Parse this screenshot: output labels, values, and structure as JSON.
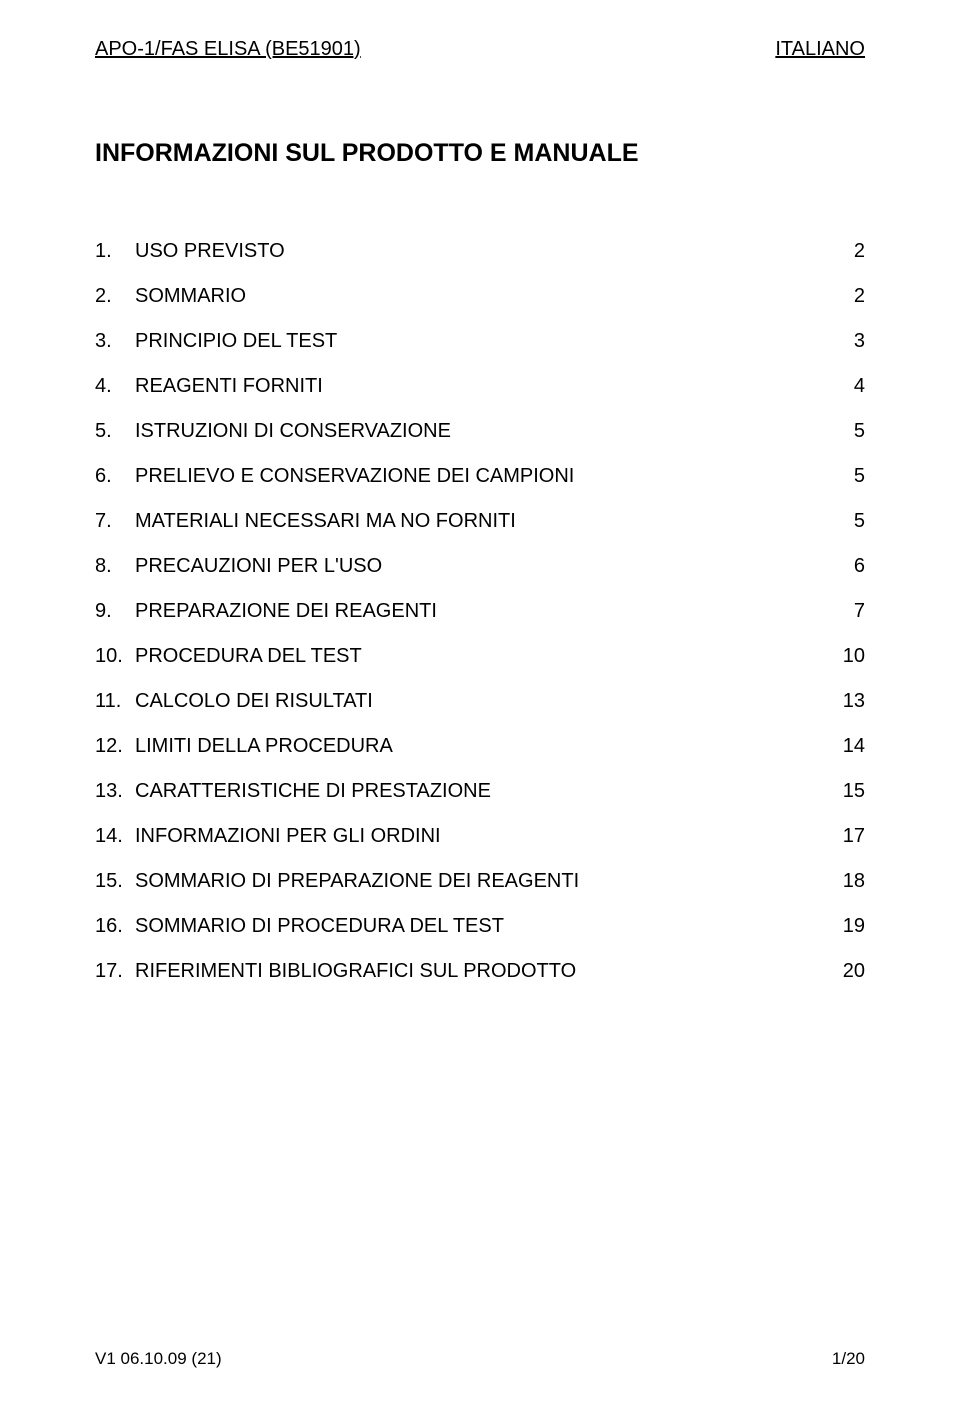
{
  "header": {
    "left": "APO-1/FAS ELISA (BE51901)",
    "right": "ITALIANO"
  },
  "title": "INFORMAZIONI SUL PRODOTTO E MANUALE",
  "toc": [
    {
      "num": "1.",
      "label": "USO PREVISTO",
      "page": "2"
    },
    {
      "num": "2.",
      "label": "SOMMARIO",
      "page": "2"
    },
    {
      "num": "3.",
      "label": "PRINCIPIO DEL TEST",
      "page": "3"
    },
    {
      "num": "4.",
      "label": "REAGENTI FORNITI",
      "page": "4"
    },
    {
      "num": "5.",
      "label": "ISTRUZIONI DI CONSERVAZIONE",
      "page": "5"
    },
    {
      "num": "6.",
      "label": "PRELIEVO E CONSERVAZIONE DEI CAMPIONI",
      "page": "5"
    },
    {
      "num": "7.",
      "label": "MATERIALI NECESSARI MA NO FORNITI",
      "page": "5"
    },
    {
      "num": "8.",
      "label": "PRECAUZIONI PER L'USO",
      "page": "6"
    },
    {
      "num": "9.",
      "label": "PREPARAZIONE DEI REAGENTI",
      "page": "7"
    },
    {
      "num": "10.",
      "label": "PROCEDURA DEL TEST",
      "page": "10"
    },
    {
      "num": "11.",
      "label": "CALCOLO DEI RISULTATI",
      "page": "13"
    },
    {
      "num": "12.",
      "label": "LIMITI DELLA PROCEDURA",
      "page": "14"
    },
    {
      "num": "13.",
      "label": "CARATTERISTICHE DI PRESTAZIONE",
      "page": "15"
    },
    {
      "num": "14.",
      "label": "INFORMAZIONI PER GLI ORDINI",
      "page": "17"
    },
    {
      "num": "15.",
      "label": "SOMMARIO DI PREPARAZIONE DEI REAGENTI",
      "page": "18"
    },
    {
      "num": "16.",
      "label": "SOMMARIO DI PROCEDURA DEL TEST",
      "page": "19"
    },
    {
      "num": "17.",
      "label": "RIFERIMENTI BIBLIOGRAFICI SUL PRODOTTO",
      "page": "20"
    }
  ],
  "footer": {
    "left": "V1  06.10.09 (21)",
    "right": "1/20"
  }
}
